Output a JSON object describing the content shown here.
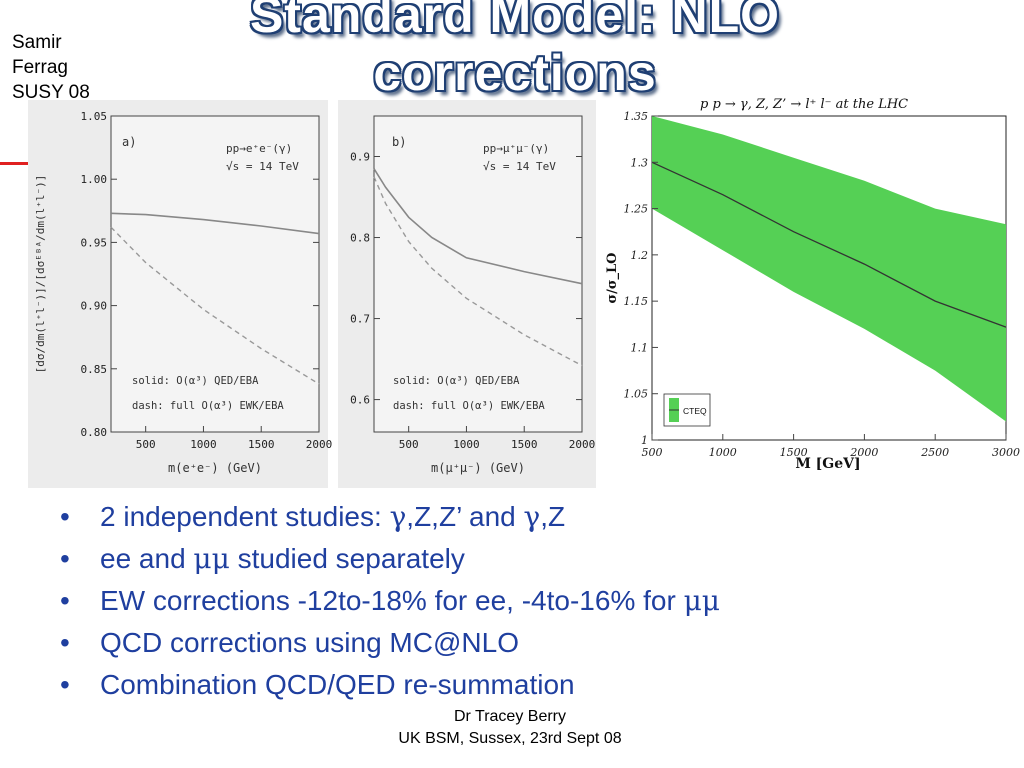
{
  "slide": {
    "title_line1": "Standard Model: NLO",
    "title_line2": "corrections",
    "corner": [
      "Samir",
      "Ferrag",
      "SUSY 08"
    ],
    "bullets": [
      {
        "parts": [
          "2 independent studies: ",
          "γ",
          ",Z,Z’ and ",
          "γ",
          ",Z"
        ]
      },
      {
        "parts": [
          "ee and ",
          "μμ",
          " studied separately"
        ]
      },
      {
        "parts": [
          "EW corrections -12to-18% for ee, -4to-16% for ",
          "μμ",
          ""
        ]
      },
      {
        "parts": [
          "QCD corrections using MC@NLO",
          "",
          "",
          "",
          ""
        ]
      },
      {
        "parts": [
          "Combination QCD/QED re-summation",
          "",
          "",
          "",
          ""
        ]
      }
    ],
    "footer_line1": "Dr Tracey Berry",
    "footer_line2": "UK BSM, Sussex, 23rd Sept 08",
    "colors": {
      "title_outline": "#1f3f73",
      "bullet_text": "#1f3f9f",
      "band": "#55d055",
      "red_dash": "#e02020"
    }
  },
  "chart_data": [
    {
      "type": "line",
      "panel_label": "a)",
      "process": "pp→e⁺e⁻(γ)",
      "energy": "√s = 14 TeV",
      "ylabel": "[dσ/dm(l⁺l⁻)]/[dσᴱᴮᴬ/dm(l⁺l⁻)]",
      "xlabel": "m(e⁺e⁻) (GeV)",
      "xlim": [
        200,
        2000
      ],
      "ylim": [
        0.8,
        1.05
      ],
      "xticks": [
        500,
        1000,
        1500,
        2000
      ],
      "yticks": [
        0.8,
        0.85,
        0.9,
        0.95,
        1.0,
        1.05
      ],
      "ytick_labels": [
        "0.80",
        "0.85",
        "0.90",
        "0.95",
        "1.00",
        "1.05"
      ],
      "legend": [
        "solid: O(α³) QED/EBA",
        "dash: full  O(α³) EWK/EBA"
      ],
      "series": [
        {
          "name": "solid: O(α³) QED/EBA",
          "style": "solid",
          "x": [
            200,
            500,
            1000,
            1500,
            2000
          ],
          "y": [
            0.973,
            0.972,
            0.968,
            0.963,
            0.957
          ]
        },
        {
          "name": "dash: full  O(α³) EWK/EBA",
          "style": "dashed",
          "x": [
            200,
            500,
            1000,
            1500,
            2000
          ],
          "y": [
            0.962,
            0.934,
            0.897,
            0.866,
            0.838
          ]
        }
      ]
    },
    {
      "type": "line",
      "panel_label": "b)",
      "process": "pp→μ⁺μ⁻(γ)",
      "energy": "√s = 14 TeV",
      "xlabel": "m(μ⁺μ⁻) (GeV)",
      "xlim": [
        200,
        2000
      ],
      "ylim": [
        0.56,
        0.95
      ],
      "xticks": [
        500,
        1000,
        1500,
        2000
      ],
      "yticks": [
        0.6,
        0.7,
        0.8,
        0.9
      ],
      "ytick_labels": [
        "0.6",
        "0.7",
        "0.8",
        "0.9"
      ],
      "legend": [
        "solid: O(α³) QED/EBA",
        "dash: full  O(α³) EWK/EBA"
      ],
      "series": [
        {
          "name": "solid: O(α³) QED/EBA",
          "style": "solid",
          "x": [
            200,
            300,
            500,
            700,
            1000,
            1500,
            2000
          ],
          "y": [
            0.885,
            0.862,
            0.825,
            0.8,
            0.775,
            0.758,
            0.743
          ]
        },
        {
          "name": "dash: full  O(α³) EWK/EBA",
          "style": "dashed",
          "x": [
            200,
            300,
            500,
            700,
            1000,
            1500,
            2000
          ],
          "y": [
            0.875,
            0.842,
            0.795,
            0.762,
            0.725,
            0.68,
            0.642
          ]
        }
      ]
    },
    {
      "type": "area",
      "title": "p p  → γ, Z, Z’ → l⁺ l⁻ at the LHC",
      "xlabel": "M [GeV]",
      "ylabel": "σ/σ_LO",
      "xlim": [
        500,
        3000
      ],
      "ylim": [
        1.0,
        1.35
      ],
      "xticks": [
        500,
        1000,
        1500,
        2000,
        2500,
        3000
      ],
      "yticks": [
        1.0,
        1.05,
        1.1,
        1.15,
        1.2,
        1.25,
        1.3,
        1.35
      ],
      "ytick_labels": [
        "1",
        "1.05",
        "1.1",
        "1.15",
        "1.2",
        "1.25",
        "1.3",
        "1.35"
      ],
      "legend": [
        "CTEQ"
      ],
      "band": {
        "name": "CTEQ",
        "x": [
          500,
          1000,
          1500,
          2000,
          2500,
          3000
        ],
        "upper": [
          1.355,
          1.33,
          1.305,
          1.28,
          1.25,
          1.233
        ],
        "lower": [
          1.25,
          1.205,
          1.16,
          1.12,
          1.075,
          1.02
        ]
      },
      "series": [
        {
          "name": "CTEQ",
          "style": "solid",
          "x": [
            500,
            1000,
            1500,
            2000,
            2500,
            3000
          ],
          "y": [
            1.3,
            1.265,
            1.225,
            1.19,
            1.15,
            1.122
          ]
        }
      ]
    }
  ]
}
